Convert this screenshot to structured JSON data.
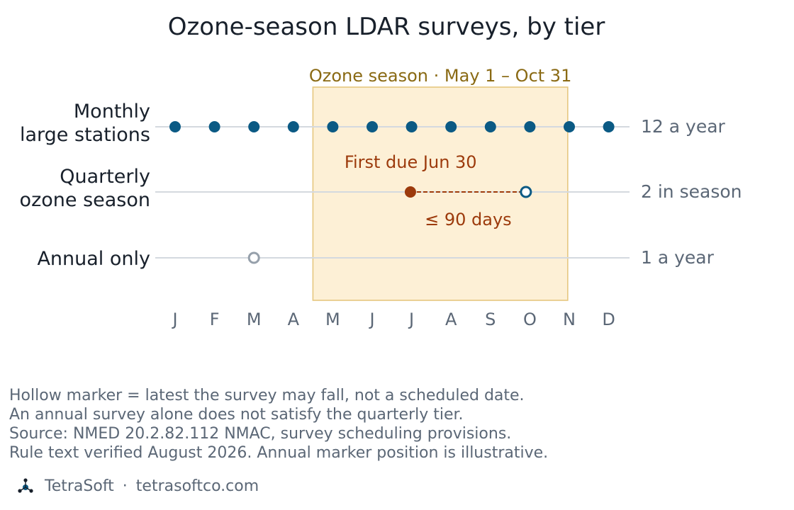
{
  "chart_data": {
    "type": "scatter",
    "title": "Ozone-season LDAR surveys, by tier",
    "x": [
      "J",
      "F",
      "M",
      "A",
      "M",
      "J",
      "J",
      "A",
      "S",
      "O",
      "N",
      "D"
    ],
    "highlight_band": {
      "label": "Ozone season · May 1 – Oct 31",
      "start_month": 5,
      "end_month": 10.97
    },
    "series": [
      {
        "name": "Monthly large stations",
        "row_label_lines": [
          "Monthly",
          "large stations"
        ],
        "right_label": "12 a year",
        "points": [
          {
            "month": 1,
            "marker": "filled"
          },
          {
            "month": 2,
            "marker": "filled"
          },
          {
            "month": 3,
            "marker": "filled"
          },
          {
            "month": 4,
            "marker": "filled"
          },
          {
            "month": 5,
            "marker": "filled"
          },
          {
            "month": 6,
            "marker": "filled"
          },
          {
            "month": 7,
            "marker": "filled"
          },
          {
            "month": 8,
            "marker": "filled"
          },
          {
            "month": 9,
            "marker": "filled"
          },
          {
            "month": 10,
            "marker": "filled"
          },
          {
            "month": 11,
            "marker": "filled"
          },
          {
            "month": 12,
            "marker": "filled"
          }
        ],
        "color": "#0b5a84"
      },
      {
        "name": "Quarterly ozone season",
        "row_label_lines": [
          "Quarterly",
          "ozone season"
        ],
        "right_label": "2 in season",
        "points": [
          {
            "month": 6.97,
            "marker": "filled",
            "color": "#9c3a0c",
            "annotation": "First due Jun 30"
          },
          {
            "month": 9.9,
            "marker": "hollow",
            "color": "#0b5a84"
          }
        ],
        "interval": {
          "from": 6.97,
          "to": 9.9,
          "label": "≤ 90 days",
          "color": "#9c3a0c"
        }
      },
      {
        "name": "Annual only",
        "row_label_lines": [
          "Annual only"
        ],
        "right_label": "1 a year",
        "points": [
          {
            "month": 3,
            "marker": "hollow",
            "color": "#96a0ab"
          }
        ]
      }
    ],
    "colors": {
      "band_fill": "#fdf0d6",
      "band_stroke": "#e6c77f",
      "band_text": "#8a6a14",
      "rule_line": "#d4d9df",
      "axis_text": "#5b6776",
      "title_text": "#18202b"
    }
  },
  "notes": [
    "Hollow marker = latest the survey may fall, not a scheduled date.",
    "An annual survey alone does not satisfy the quarterly tier.",
    "Source: NMED 20.2.82.112 NMAC, survey scheduling provisions.",
    "Rule text verified August 2026. Annual marker position is illustrative."
  ],
  "brand": {
    "logo_icon": "tetrasoft-logo-icon",
    "name": "TetraSoft",
    "separator": "·",
    "url": "tetrasoftco.com"
  }
}
